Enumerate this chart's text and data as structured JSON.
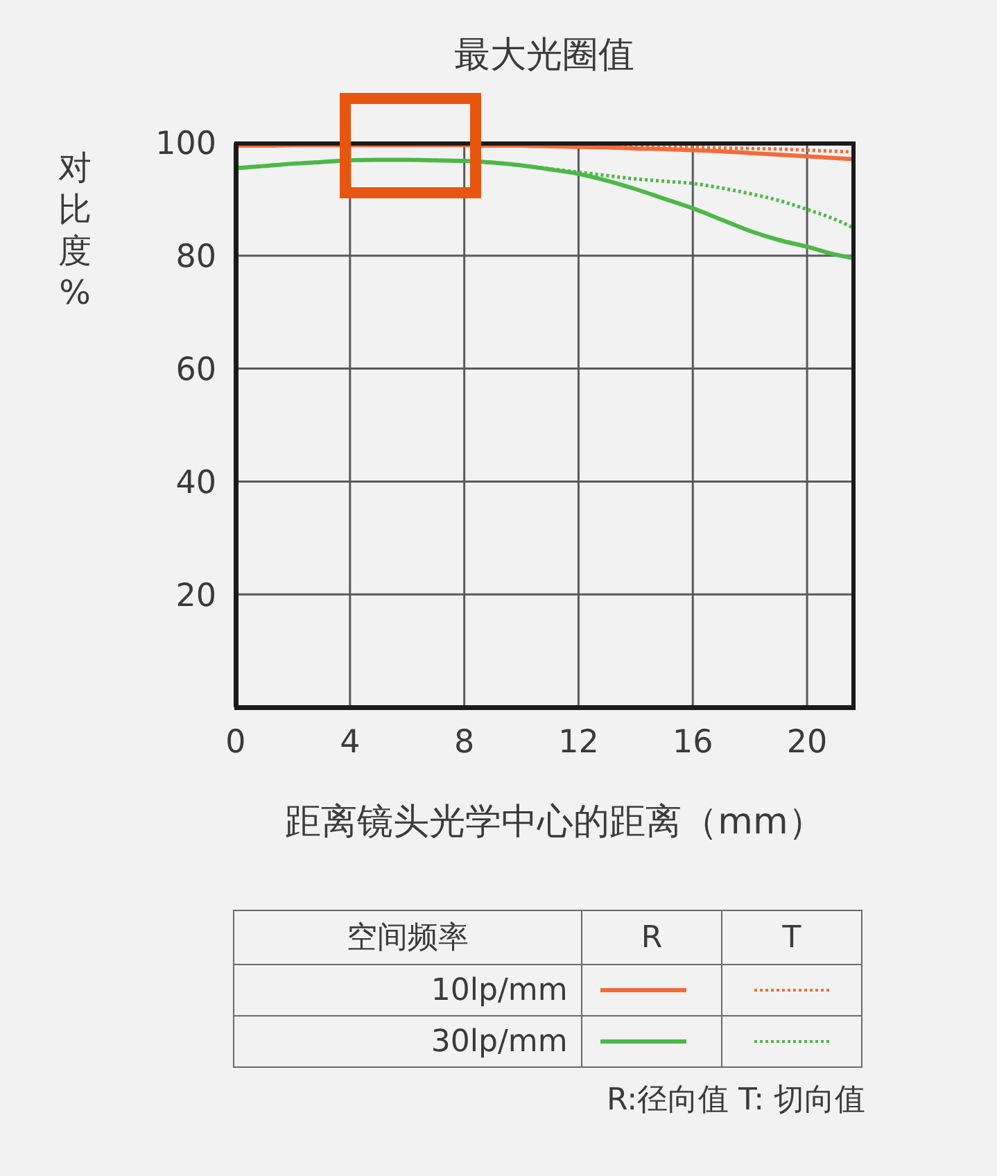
{
  "chart_data": {
    "type": "line",
    "title": "最大光圈值",
    "xlabel": "距离镜头光学中心的距离（mm）",
    "ylabel": "对比度%",
    "legend_title": "空间频率",
    "x": [
      0,
      1,
      2,
      3,
      4,
      5,
      6,
      7,
      8,
      9,
      10,
      11,
      12,
      13,
      14,
      15,
      16,
      17,
      18,
      19,
      20,
      21,
      21.6
    ],
    "series": [
      {
        "name": "10lp/mm",
        "color": "#f26b3a",
        "line_style": "solid",
        "values": [
          99.5,
          99.5,
          99.6,
          99.6,
          99.6,
          99.6,
          99.6,
          99.6,
          99.6,
          99.5,
          99.5,
          99.4,
          99.3,
          99.2,
          99.0,
          98.9,
          98.7,
          98.5,
          98.2,
          97.9,
          97.6,
          97.3,
          97.1
        ]
      },
      {
        "color": "#f26b3a",
        "line_style": "dotted",
        "values": [
          99.7,
          99.7,
          99.7,
          99.7,
          99.7,
          99.7,
          99.7,
          99.7,
          99.7,
          99.7,
          99.7,
          99.6,
          99.6,
          99.5,
          99.4,
          99.3,
          99.2,
          99.1,
          99.0,
          98.9,
          98.7,
          98.5,
          98.4
        ]
      },
      {
        "name": "30lp/mm",
        "color": "#4cb848",
        "line_style": "solid",
        "values": [
          95.5,
          95.9,
          96.3,
          96.6,
          96.9,
          97.0,
          97.0,
          96.9,
          96.8,
          96.5,
          96.0,
          95.3,
          94.5,
          93.3,
          91.8,
          90.1,
          88.4,
          86.4,
          84.4,
          82.8,
          81.6,
          80.2,
          79.6
        ]
      },
      {
        "color": "#4cb848",
        "line_style": "dotted",
        "values": [
          95.5,
          95.9,
          96.3,
          96.6,
          96.9,
          97.0,
          97.0,
          96.9,
          96.8,
          96.5,
          96.0,
          95.4,
          94.8,
          94.2,
          93.6,
          93.2,
          92.8,
          92.0,
          91.0,
          89.8,
          88.2,
          86.4,
          85.0
        ]
      }
    ],
    "xlim": [
      0,
      21.6
    ],
    "ylim": [
      0,
      100
    ],
    "xticks": [
      0,
      4,
      8,
      12,
      16,
      20
    ],
    "yticks": [
      20,
      40,
      60,
      80,
      100
    ],
    "grid": true,
    "legend": "bottom",
    "marker": "none",
    "annotations": [
      "R",
      "T",
      "R:径向值 T: 切向值"
    ]
  }
}
